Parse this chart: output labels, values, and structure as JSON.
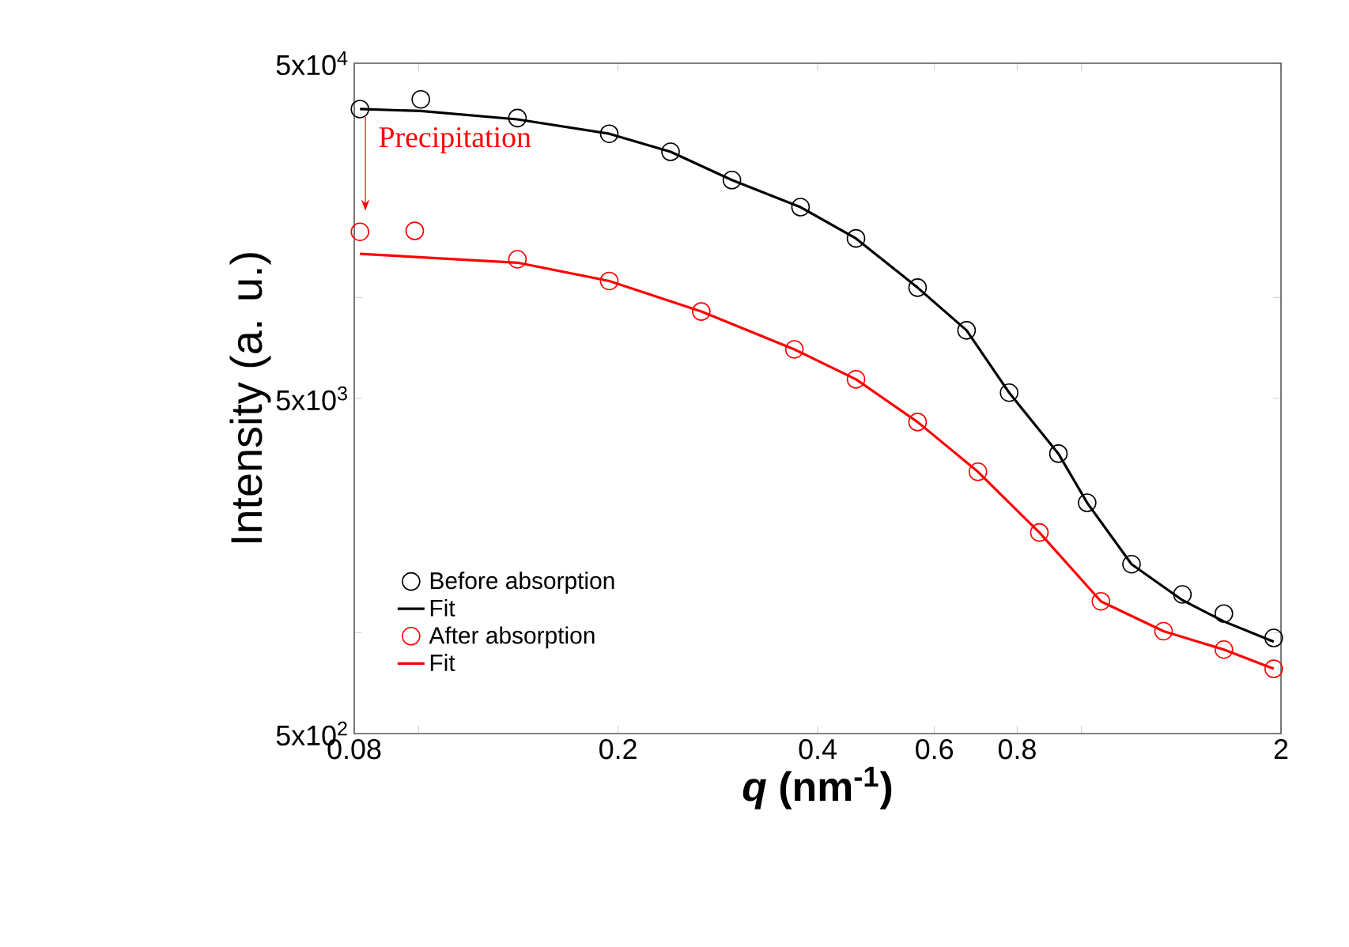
{
  "chart_data": {
    "type": "scatter",
    "xlabel": "*q* (nm$^{-1}$)",
    "ylabel": "Intensity (a. u.)",
    "log": "xy",
    "xlim": [
      0.08,
      2
    ],
    "ylim": [
      500,
      50000
    ],
    "xticks": [
      0.08,
      {
        "value": 0.1,
        "label": null
      },
      0.2,
      0.4,
      0.6,
      0.8,
      {
        "value": 1,
        "label": null
      },
      2
    ],
    "yticks": [
      {
        "value": 500,
        "label": "5x10$^{2}$"
      },
      {
        "value": 1000,
        "label": null
      },
      {
        "value": 5000,
        "label": "5x10$^{3}$"
      },
      {
        "value": 10000,
        "label": null
      },
      {
        "value": 50000,
        "label": "5x10$^{4}$"
      }
    ],
    "legend": "bottom left",
    "annotations": [
      "Precipitation"
    ],
    "series": [
      {
        "name": "Before absorption",
        "marker": "circle",
        "color": "#000000",
        "x": [
          0.0816,
          0.1008,
          0.141,
          0.194,
          0.24,
          0.297,
          0.377,
          0.457,
          0.566,
          0.671,
          0.778,
          0.923,
          1.02,
          1.19,
          1.42,
          1.64,
          1.95
        ],
        "values": [
          36500,
          39000,
          34300,
          30800,
          27200,
          22400,
          18600,
          15000,
          10700,
          7980,
          5200,
          3420,
          2440,
          1600,
          1300,
          1140,
          964
        ]
      },
      {
        "name": "Fit",
        "type": "line",
        "color": "#000000",
        "x": [
          0.0816,
          0.1008,
          0.141,
          0.194,
          0.24,
          0.297,
          0.377,
          0.457,
          0.566,
          0.671,
          0.778,
          0.923,
          1.02,
          1.19,
          1.42,
          1.64,
          1.95
        ],
        "values": [
          36500,
          36000,
          34000,
          30800,
          27200,
          22400,
          18600,
          15000,
          10700,
          7980,
          5200,
          3420,
          2440,
          1600,
          1250,
          1080,
          940
        ]
      },
      {
        "name": "After absorption",
        "marker": "circle",
        "color": "#ff0000",
        "x": [
          0.0816,
          0.0987,
          0.141,
          0.194,
          0.267,
          0.369,
          0.457,
          0.566,
          0.698,
          0.864,
          1.07,
          1.33,
          1.64,
          1.95
        ],
        "values": [
          15700,
          15800,
          13000,
          11200,
          9080,
          7000,
          5700,
          4250,
          3020,
          1990,
          1240,
          1010,
          890,
          780
        ]
      },
      {
        "name": "Fit",
        "type": "line",
        "color": "#ff0000",
        "x": [
          0.0816,
          0.141,
          0.194,
          0.267,
          0.369,
          0.457,
          0.566,
          0.698,
          0.864,
          1.07,
          1.33,
          1.64,
          1.95
        ],
        "values": [
          13500,
          12700,
          11200,
          9080,
          7000,
          5700,
          4250,
          3020,
          1990,
          1240,
          1010,
          890,
          780
        ]
      }
    ]
  }
}
